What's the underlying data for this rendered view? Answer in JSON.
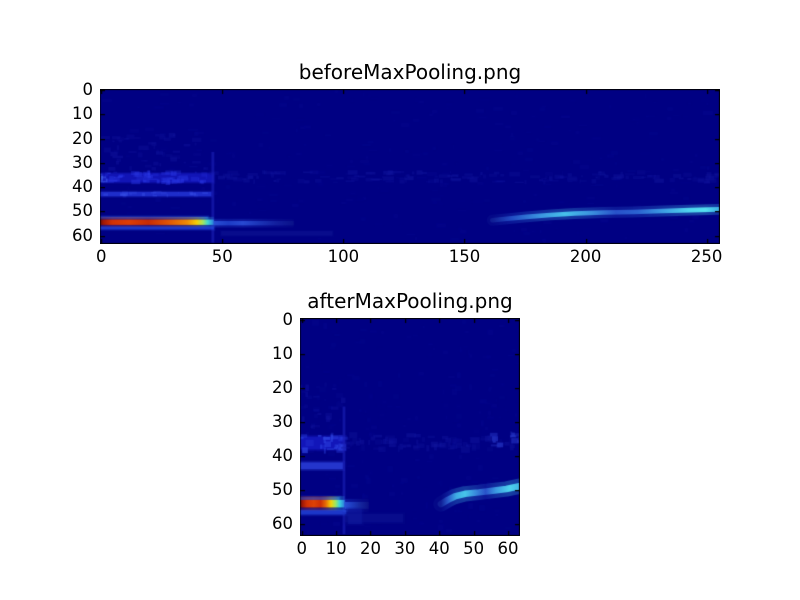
{
  "figure": {
    "background": "#ffffff"
  },
  "chart_data": [
    {
      "type": "heatmap",
      "title": "beforeMaxPooling.png",
      "x_ticks": [
        0,
        50,
        100,
        150,
        200,
        250
      ],
      "y_ticks": [
        0,
        10,
        20,
        30,
        40,
        50,
        60
      ],
      "x_range": [
        0,
        256
      ],
      "y_range": [
        0,
        64
      ],
      "colormap": "jet",
      "tick_direction": "in",
      "background": "#000083",
      "features": [
        {
          "type": "noise",
          "x0": 0,
          "x1": 256,
          "y0": 1,
          "y1": 63,
          "dw": 4,
          "dh": 1.5,
          "count": 300,
          "seed": 7,
          "color": "#0a0d9a",
          "alpha": 0.22
        },
        {
          "type": "noise",
          "x0": 1,
          "x1": 47,
          "y0": 19,
          "y1": 33,
          "dw": 4,
          "dh": 1.6,
          "count": 50,
          "seed": 11,
          "color": "#12159f",
          "alpha": 0.45
        },
        {
          "type": "band",
          "x0": 0,
          "x1": 47,
          "y0": 34.8,
          "y1": 38.6,
          "color": "#151ac2",
          "alpha": 0.75
        },
        {
          "type": "noise",
          "x0": 0,
          "x1": 47,
          "y0": 34.3,
          "y1": 39,
          "dw": 3.5,
          "dh": 1.7,
          "count": 60,
          "seed": 21,
          "color": "#2936e2",
          "alpha": 0.6
        },
        {
          "type": "noise",
          "x0": 47,
          "x1": 256,
          "y0": 34.3,
          "y1": 38.6,
          "dw": 4.5,
          "dh": 1.5,
          "count": 150,
          "seed": 31,
          "color": "#10149c",
          "alpha": 0.5
        },
        {
          "type": "band",
          "x0": 0,
          "x1": 46,
          "y0": 42.5,
          "y1": 44.3,
          "color": "#2335d6",
          "alpha": 0.8
        },
        {
          "type": "noise",
          "x0": 1,
          "x1": 45,
          "y0": 42.5,
          "y1": 44.2,
          "dw": 3,
          "dh": 1,
          "count": 20,
          "seed": 41,
          "color": "#3a52e8",
          "alpha": 0.5
        },
        {
          "type": "vline",
          "x": 46.6,
          "y0": 26,
          "y1": 63.5,
          "w": 1.2,
          "color": "#1a20b8",
          "alpha": 0.6
        },
        {
          "type": "band",
          "x0": 0,
          "x1": 44.5,
          "y0": 52.7,
          "y1": 53.5,
          "color": "#2250de",
          "alpha": 0.75
        },
        {
          "type": "hstreak",
          "x0": 0,
          "x1": 47,
          "y": 55,
          "h": 2.2,
          "halo": 1.1,
          "stops": [
            [
              0,
              "#6f0d00"
            ],
            [
              1.5,
              "#a81a00"
            ],
            [
              5,
              "#d93300"
            ],
            [
              12,
              "#e64000"
            ],
            [
              20,
              "#cf2d00"
            ],
            [
              28,
              "#e85700"
            ],
            [
              36,
              "#f89000"
            ],
            [
              40,
              "#ffd800"
            ],
            [
              42.5,
              "#a8f060"
            ],
            [
              44.5,
              "#40e0d8"
            ],
            [
              47,
              "#2b7de0"
            ]
          ]
        },
        {
          "type": "band",
          "x0": 0,
          "x1": 47,
          "y0": 56.8,
          "y1": 58,
          "color": "#2343da",
          "alpha": 0.75
        },
        {
          "type": "hstreak",
          "x0": 47,
          "x1": 80,
          "y": 55.4,
          "h": 1.8,
          "halo": 0.9,
          "stops": [
            [
              47,
              "#2b52d8"
            ],
            [
              53,
              "#1e3ec8"
            ],
            [
              59,
              "#2a4cd4"
            ],
            [
              66,
              "#1c35b8"
            ],
            [
              73,
              "#131f9e"
            ],
            [
              80,
              "#0a128a"
            ]
          ]
        },
        {
          "type": "band",
          "x0": 50,
          "x1": 96,
          "y0": 58.6,
          "y1": 60.6,
          "color": "#0d1494",
          "alpha": 0.5
        },
        {
          "type": "path",
          "w": 1.9,
          "halo": 1.3,
          "points": [
            [
              162,
              54.2
            ],
            [
              168,
              53.6
            ],
            [
              176,
              52.8
            ],
            [
              186,
              52.0
            ],
            [
              196,
              51.4
            ],
            [
              208,
              51.0
            ],
            [
              220,
              50.8
            ],
            [
              232,
              50.4
            ],
            [
              244,
              50.0
            ],
            [
              255.5,
              49.7
            ]
          ],
          "stops": [
            [
              162,
              "#101f96"
            ],
            [
              170,
              "#2450c8"
            ],
            [
              182,
              "#3e9ce4"
            ],
            [
              192,
              "#49c8ee"
            ],
            [
              203,
              "#3e96e2"
            ],
            [
              213,
              "#2a55cc"
            ],
            [
              222,
              "#2d66d4"
            ],
            [
              232,
              "#3e9fe6"
            ],
            [
              243,
              "#52dcf2"
            ],
            [
              250,
              "#58e8f4"
            ],
            [
              255.5,
              "#3fb4e8"
            ]
          ]
        },
        {
          "type": "noise",
          "x0": 0,
          "x1": 3,
          "y0": 35,
          "y1": 38.5,
          "dw": 1.5,
          "dh": 1.4,
          "count": 7,
          "seed": 51,
          "color": "#3f5ae8",
          "alpha": 0.85
        }
      ]
    },
    {
      "type": "heatmap",
      "title": "afterMaxPooling.png",
      "x_ticks": [
        0,
        10,
        20,
        30,
        40,
        50,
        60
      ],
      "y_ticks": [
        0,
        10,
        20,
        30,
        40,
        50,
        60
      ],
      "x_range": [
        0,
        64
      ],
      "y_range": [
        0,
        64
      ],
      "colormap": "jet",
      "tick_direction": "in",
      "background": "#000083",
      "features": [
        {
          "type": "noise",
          "x0": 0,
          "x1": 64,
          "y0": 1,
          "y1": 63,
          "dw": 1.8,
          "dh": 1.5,
          "count": 200,
          "seed": 9,
          "color": "#0a0d9a",
          "alpha": 0.22
        },
        {
          "type": "noise",
          "x0": 0,
          "x1": 13,
          "y0": 19,
          "y1": 33,
          "dw": 2,
          "dh": 1.6,
          "count": 22,
          "seed": 13,
          "color": "#12159f",
          "alpha": 0.45
        },
        {
          "type": "band",
          "x0": 0,
          "x1": 13,
          "y0": 34.8,
          "y1": 38.6,
          "color": "#151ac2",
          "alpha": 0.8
        },
        {
          "type": "noise",
          "x0": 0,
          "x1": 13,
          "y0": 34.3,
          "y1": 39,
          "dw": 2,
          "dh": 1.7,
          "count": 24,
          "seed": 23,
          "color": "#2e44e2",
          "alpha": 0.7
        },
        {
          "type": "noise",
          "x0": 13,
          "x1": 64,
          "y0": 34.3,
          "y1": 38.6,
          "dw": 2.4,
          "dh": 1.5,
          "count": 80,
          "seed": 33,
          "color": "#10149c",
          "alpha": 0.5
        },
        {
          "type": "noise",
          "x0": 54,
          "x1": 64,
          "y0": 34,
          "y1": 38,
          "dw": 1.8,
          "dh": 1.4,
          "count": 12,
          "seed": 43,
          "color": "#2c3fd2",
          "alpha": 0.55
        },
        {
          "type": "band",
          "x0": 0,
          "x1": 12.5,
          "y0": 42.4,
          "y1": 44.4,
          "color": "#2b3fd8",
          "alpha": 0.8
        },
        {
          "type": "vline",
          "x": 12.8,
          "y0": 26,
          "y1": 63.5,
          "w": 0.8,
          "color": "#1a20b8",
          "alpha": 0.6
        },
        {
          "type": "band",
          "x0": 0,
          "x1": 11.5,
          "y0": 52.6,
          "y1": 53.4,
          "color": "#2253de",
          "alpha": 0.7
        },
        {
          "type": "hstreak",
          "x0": 0,
          "x1": 13,
          "y": 54.5,
          "h": 2.2,
          "halo": 1.1,
          "stops": [
            [
              0,
              "#6f0d00"
            ],
            [
              0.8,
              "#aa1b00"
            ],
            [
              2,
              "#d93300"
            ],
            [
              4,
              "#e64500"
            ],
            [
              6,
              "#d63000"
            ],
            [
              7.5,
              "#ee7000"
            ],
            [
              9,
              "#ffd800"
            ],
            [
              10.3,
              "#a6f05e"
            ],
            [
              11.5,
              "#3ddce0"
            ],
            [
              13,
              "#2b7de0"
            ]
          ]
        },
        {
          "type": "band",
          "x0": 0,
          "x1": 13.5,
          "y0": 56.4,
          "y1": 57.7,
          "color": "#2343da",
          "alpha": 0.75
        },
        {
          "type": "hstreak",
          "x0": 13,
          "x1": 20,
          "y": 55,
          "h": 2,
          "halo": 0.9,
          "stops": [
            [
              13,
              "#2b52d8"
            ],
            [
              15,
              "#2040c4"
            ],
            [
              17.5,
              "#16289f"
            ],
            [
              20,
              "#0c1288"
            ]
          ]
        },
        {
          "type": "band",
          "x0": 13,
          "x1": 30,
          "y0": 57.5,
          "y1": 60,
          "color": "#0d1494",
          "alpha": 0.5
        },
        {
          "type": "band",
          "x0": 14,
          "x1": 18,
          "y0": 56,
          "y1": 60.5,
          "color": "#111a9e",
          "alpha": 0.55
        },
        {
          "type": "path",
          "w": 1.9,
          "halo": 1.3,
          "points": [
            [
              41,
              54.6
            ],
            [
              43,
              53.4
            ],
            [
              45,
              52.4
            ],
            [
              48,
              51.6
            ],
            [
              52,
              51.2
            ],
            [
              56,
              50.7
            ],
            [
              60,
              50.2
            ],
            [
              63.8,
              49.4
            ]
          ],
          "stops": [
            [
              41,
              "#101f96"
            ],
            [
              43,
              "#2a5ccc"
            ],
            [
              45.5,
              "#42b4e8"
            ],
            [
              48,
              "#49cdee"
            ],
            [
              51,
              "#3c92e0"
            ],
            [
              54,
              "#2a55cc"
            ],
            [
              57,
              "#3e9fe6"
            ],
            [
              61,
              "#52dcf2"
            ],
            [
              63.8,
              "#43bce8"
            ]
          ]
        }
      ]
    }
  ]
}
